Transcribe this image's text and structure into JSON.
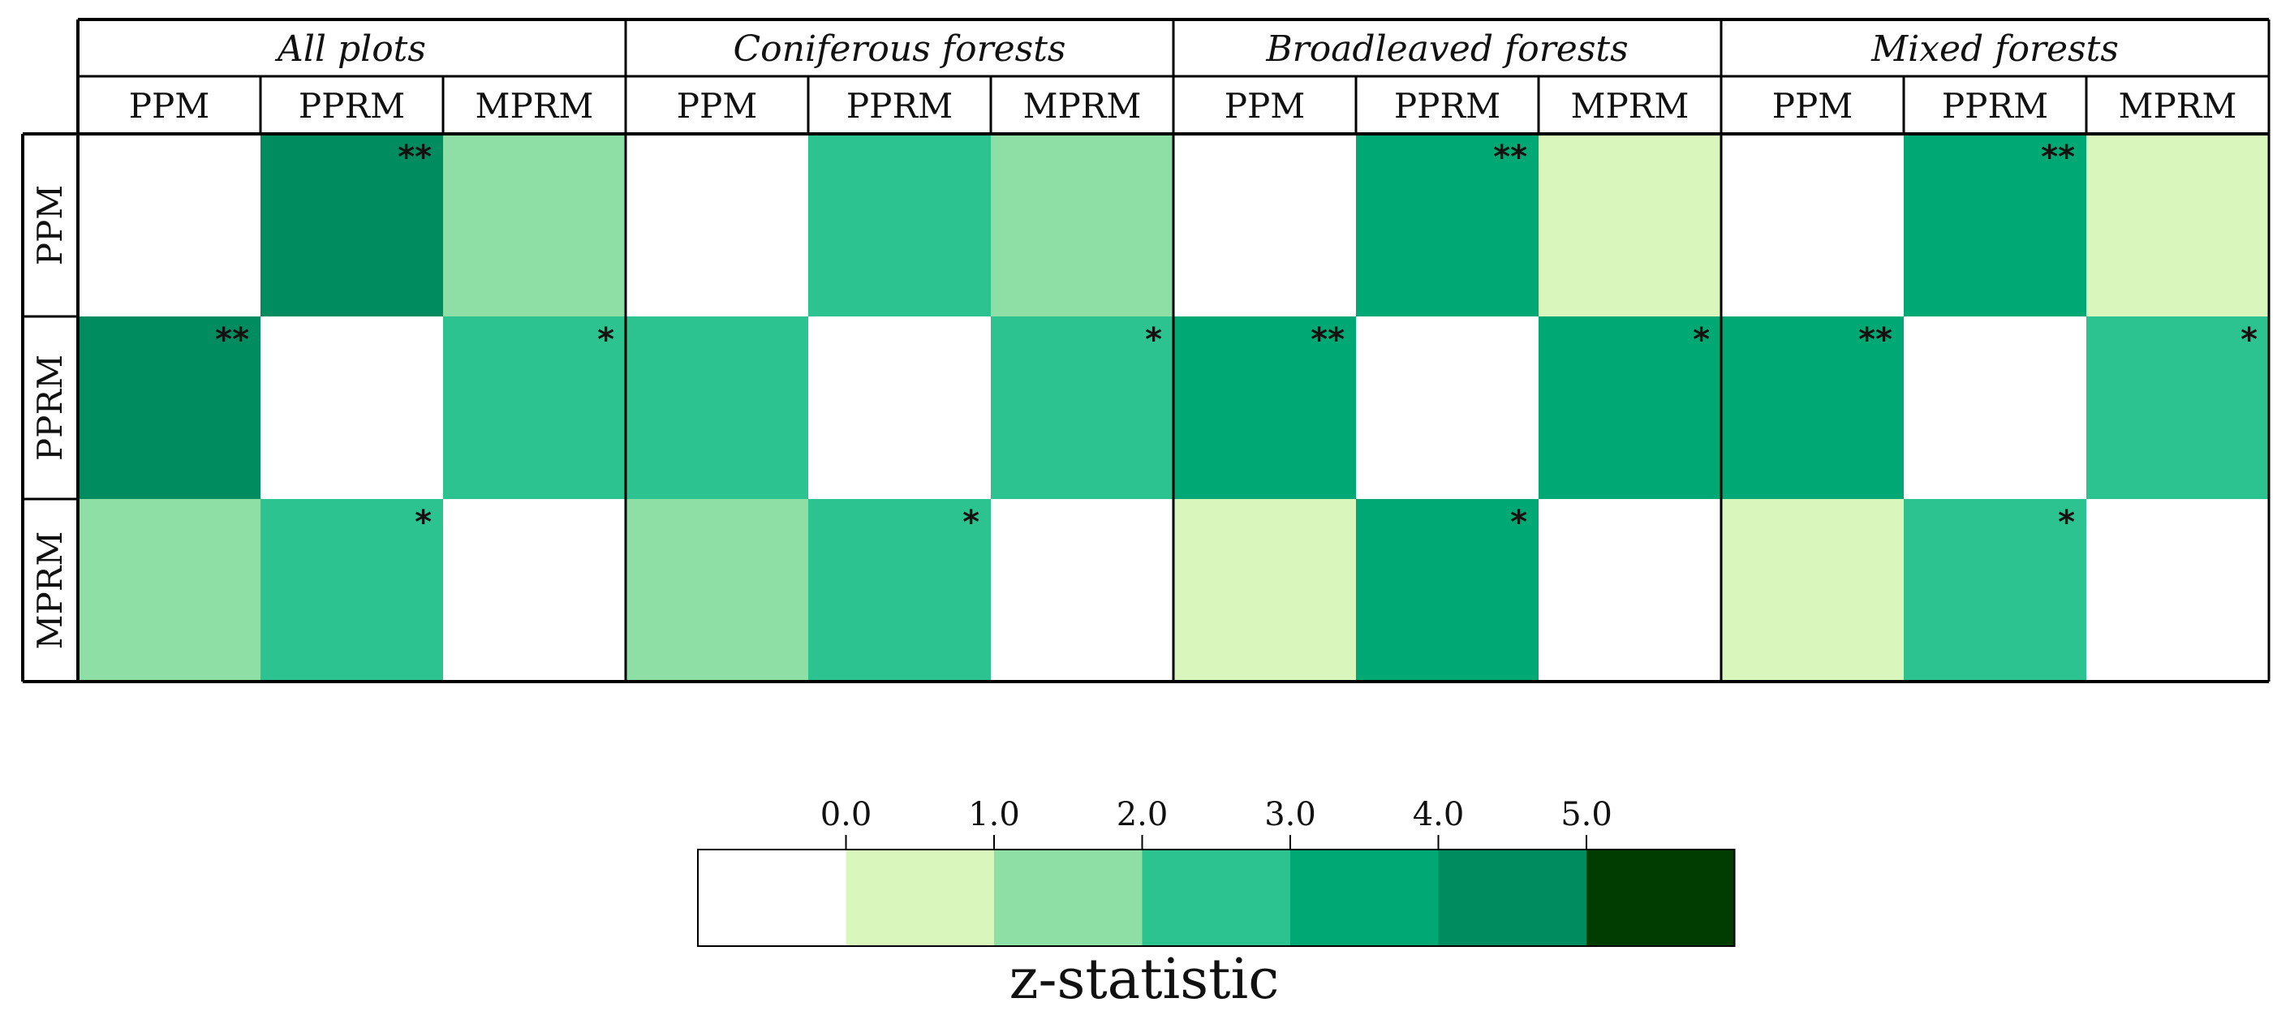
{
  "chart_data": {
    "type": "heatmap",
    "groups": [
      "All plots",
      "Coniferous forests",
      "Broadleaved forests",
      "Mixed forests"
    ],
    "columns": [
      "PPM",
      "PPRM",
      "MPRM"
    ],
    "rows": [
      "PPM",
      "PPRM",
      "MPRM"
    ],
    "z_values": [
      [
        [
          null,
          4.5,
          1.5
        ],
        [
          4.5,
          null,
          2.5
        ],
        [
          1.5,
          2.5,
          null
        ]
      ],
      [
        [
          null,
          2.5,
          1.5
        ],
        [
          2.5,
          null,
          2.5
        ],
        [
          1.5,
          2.5,
          null
        ]
      ],
      [
        [
          null,
          3.5,
          0.5
        ],
        [
          3.5,
          null,
          3.5
        ],
        [
          0.5,
          3.5,
          null
        ]
      ],
      [
        [
          null,
          3.5,
          0.5
        ],
        [
          3.5,
          null,
          2.5
        ],
        [
          0.5,
          2.5,
          null
        ]
      ]
    ],
    "significance": [
      [
        [
          "",
          "**",
          ""
        ],
        [
          "**",
          "",
          "*"
        ],
        [
          "",
          "*",
          ""
        ]
      ],
      [
        [
          "",
          "",
          ""
        ],
        [
          "",
          "",
          "*"
        ],
        [
          "",
          "*",
          ""
        ]
      ],
      [
        [
          "",
          "**",
          ""
        ],
        [
          "**",
          "",
          "*"
        ],
        [
          "",
          "*",
          ""
        ]
      ],
      [
        [
          "",
          "**",
          ""
        ],
        [
          "**",
          "",
          "*"
        ],
        [
          "",
          "*",
          ""
        ]
      ]
    ],
    "colorbar": {
      "title": "z-statistic",
      "ticks": [
        "0.0",
        "1.0",
        "2.0",
        "3.0",
        "4.0",
        "5.0"
      ],
      "bins": [
        {
          "from": null,
          "to": 0.0,
          "color": "#ffffff"
        },
        {
          "from": 0.0,
          "to": 1.0,
          "color": "#d9f7bd"
        },
        {
          "from": 1.0,
          "to": 2.0,
          "color": "#8ddfa5"
        },
        {
          "from": 2.0,
          "to": 3.0,
          "color": "#2dc390"
        },
        {
          "from": 3.0,
          "to": 4.0,
          "color": "#00a874"
        },
        {
          "from": 4.0,
          "to": 5.0,
          "color": "#008c5e"
        },
        {
          "from": 5.0,
          "to": null,
          "color": "#013d00"
        }
      ]
    },
    "diagonal_color": "#ffffff"
  }
}
